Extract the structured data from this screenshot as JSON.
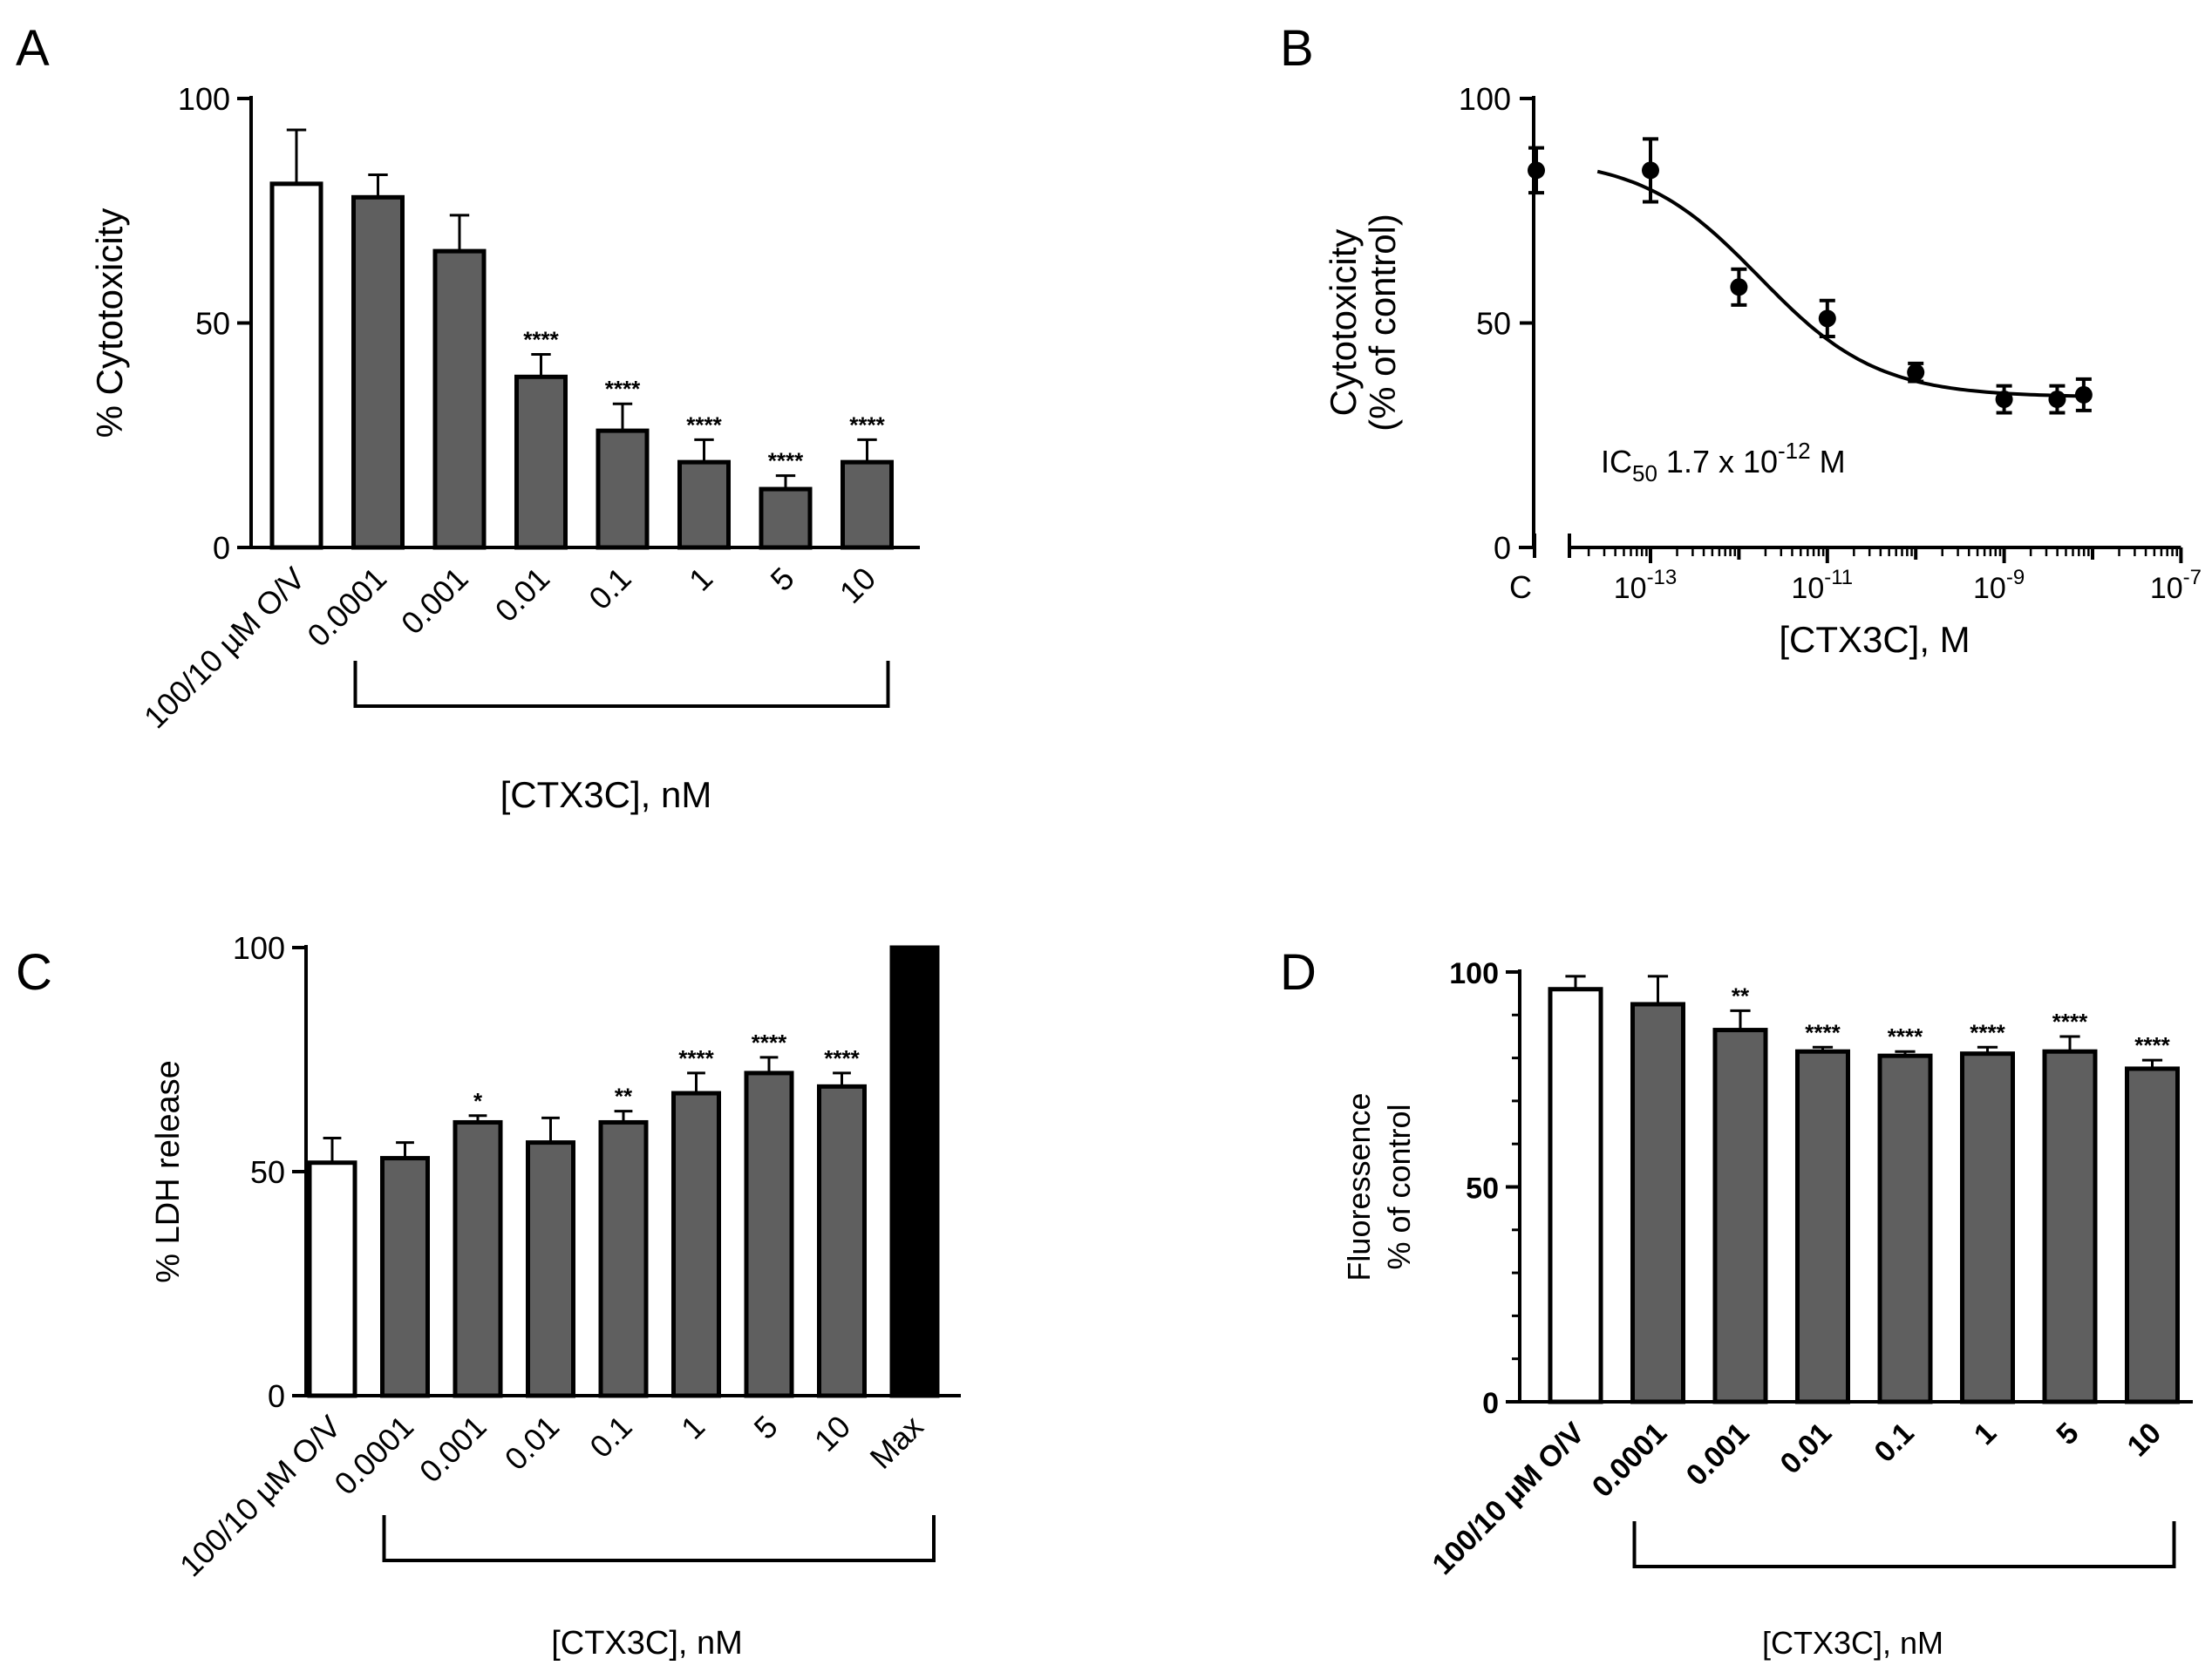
{
  "chart_data": [
    {
      "panel": "A",
      "type": "bar",
      "ylabel": "% Cytotoxicity",
      "xlabel": "[CTX3C], nM",
      "ylim": [
        0,
        100
      ],
      "yticks": [
        "0",
        "50",
        "100"
      ],
      "categories": [
        "100/10 µM O/V",
        "0.0001",
        "0.001",
        "0.01",
        "0.1",
        "1",
        "5",
        "10"
      ],
      "values": [
        81,
        78,
        66,
        38,
        26,
        19,
        13,
        19
      ],
      "errors": [
        12,
        5,
        8,
        5,
        6,
        5,
        3,
        5
      ],
      "fills": [
        "#ffffff",
        "#5f5f5f",
        "#5f5f5f",
        "#5f5f5f",
        "#5f5f5f",
        "#5f5f5f",
        "#5f5f5f",
        "#5f5f5f"
      ],
      "significance": [
        "",
        "",
        "",
        "****",
        "****",
        "****",
        "****",
        "****"
      ],
      "bracket_range": [
        1,
        7
      ]
    },
    {
      "panel": "B",
      "type": "scatter",
      "ylabel_line1": "Cytotoxicity",
      "ylabel_line2": "(% of control)",
      "xlabel": "[CTX3C], M",
      "xscale": "log",
      "xlim": [
        "1e-14",
        "1e-7"
      ],
      "ylim": [
        0,
        100
      ],
      "yticks": [
        "0",
        "50",
        "100"
      ],
      "xticks": [
        {
          "base": "10",
          "exp": "-13",
          "value": -13
        },
        {
          "base": "10",
          "exp": "-11",
          "value": -11
        },
        {
          "base": "10",
          "exp": "-9",
          "value": -9
        },
        {
          "base": "10",
          "exp": "-7",
          "value": -7
        }
      ],
      "control_label": "C",
      "control": {
        "y": 84,
        "err": 5
      },
      "points": [
        {
          "log_x": -13,
          "y": 84,
          "err": 7
        },
        {
          "log_x": -12,
          "y": 58,
          "err": 4
        },
        {
          "log_x": -11,
          "y": 51,
          "err": 4
        },
        {
          "log_x": -10,
          "y": 39,
          "err": 2
        },
        {
          "log_x": -9,
          "y": 33,
          "err": 3
        },
        {
          "log_x": -8.4,
          "y": 33,
          "err": 3
        },
        {
          "log_x": -8.1,
          "y": 34,
          "err": 3.5
        }
      ],
      "fit": {
        "top": 87,
        "bottom": 33.5,
        "log_ic50": -11.77,
        "hill": 0.65
      },
      "annotation": {
        "ic": "IC",
        "sub": "50",
        "value": "1.7 x 10",
        "exp": "-12",
        "unit": "M"
      }
    },
    {
      "panel": "C",
      "type": "bar",
      "ylabel": "% LDH release",
      "xlabel": "[CTX3C], nM",
      "ylim": [
        0,
        100
      ],
      "yticks": [
        "0",
        "50",
        "100"
      ],
      "categories": [
        "100/10 µM O/V",
        "0.0001",
        "0.001",
        "0.01",
        "0.1",
        "1",
        "5",
        "10",
        "Max"
      ],
      "values": [
        52,
        53,
        61,
        56.5,
        61,
        67.5,
        72,
        69,
        100
      ],
      "errors": [
        5.5,
        3.5,
        1.5,
        5.5,
        2.5,
        4.5,
        3.5,
        3,
        0
      ],
      "fills": [
        "#ffffff",
        "#5f5f5f",
        "#5f5f5f",
        "#5f5f5f",
        "#5f5f5f",
        "#5f5f5f",
        "#5f5f5f",
        "#5f5f5f",
        "#000000"
      ],
      "significance": [
        "",
        "",
        "*",
        "",
        "**",
        "****",
        "****",
        "****",
        ""
      ],
      "bracket_range": [
        1,
        8
      ]
    },
    {
      "panel": "D",
      "type": "bar",
      "ylabel_line1": "Fluoressence",
      "ylabel_line2": "% of control",
      "xlabel": "[CTX3C], nM",
      "ylim": [
        0,
        100
      ],
      "yticks": [
        "0",
        "50",
        "100"
      ],
      "categories": [
        "100/10 µM O/V",
        "0.0001",
        "0.001",
        "0.01",
        "0.1",
        "1",
        "5",
        "10"
      ],
      "values": [
        96,
        92.5,
        86.5,
        81.5,
        80.5,
        81,
        81.5,
        77.5
      ],
      "errors": [
        3,
        6.5,
        4.5,
        1,
        1,
        1.5,
        3.5,
        2
      ],
      "fills": [
        "#ffffff",
        "#5f5f5f",
        "#5f5f5f",
        "#5f5f5f",
        "#5f5f5f",
        "#5f5f5f",
        "#5f5f5f",
        "#5f5f5f"
      ],
      "significance": [
        "",
        "",
        "**",
        "****",
        "****",
        "****",
        "****",
        "****"
      ],
      "bracket_range": [
        1,
        7
      ],
      "bold_ticks": true
    }
  ]
}
